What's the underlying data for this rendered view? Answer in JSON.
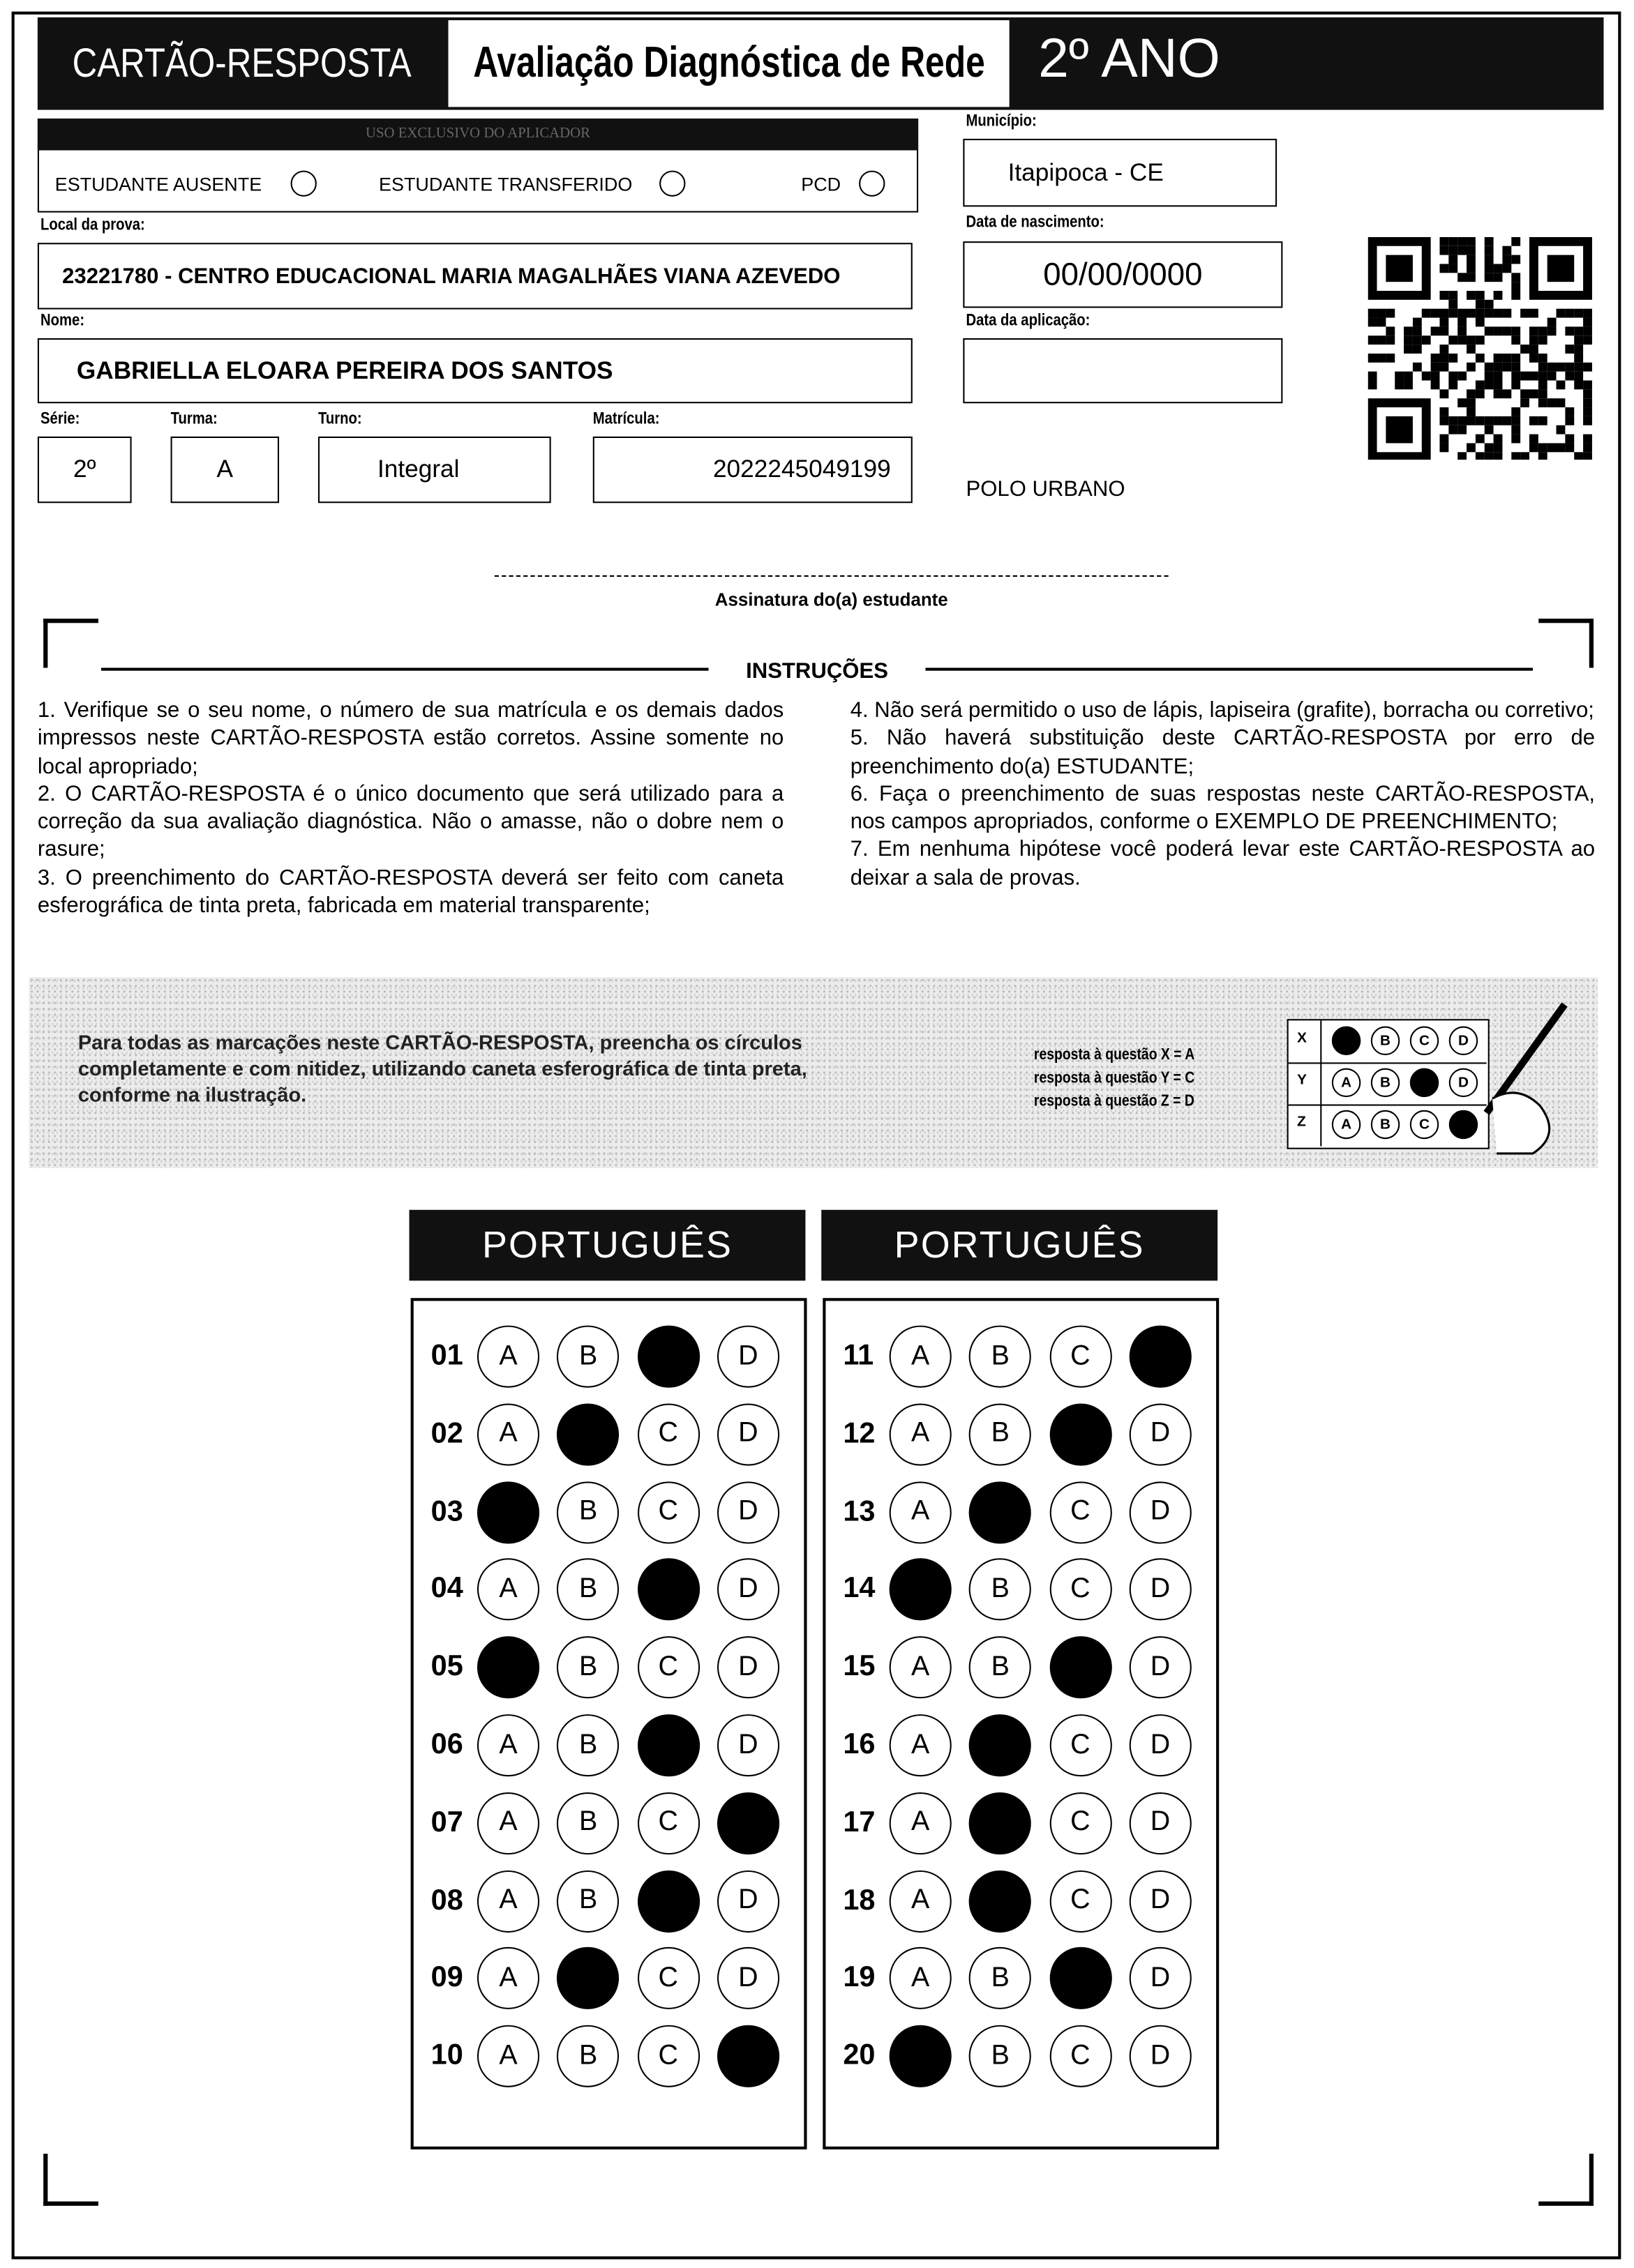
{
  "header": {
    "title": "CARTÃO-RESPOSTA",
    "exam": "Avaliação Diagnóstica de Rede",
    "grade": "2º ANO"
  },
  "applicator": {
    "title": "USO EXCLUSIVO DO APLICADOR",
    "options": [
      "ESTUDANTE AUSENTE",
      "ESTUDANTE TRANSFERIDO",
      "PCD"
    ]
  },
  "fields": {
    "local": {
      "label": "Local da prova:",
      "value": "23221780 - CENTRO EDUCACIONAL MARIA MAGALHÃES VIANA AZEVEDO"
    },
    "nome": {
      "label": "Nome:",
      "value": "GABRIELLA ELOARA PEREIRA DOS SANTOS"
    },
    "serie": {
      "label": "Série:",
      "value": "2º"
    },
    "turma": {
      "label": "Turma:",
      "value": "A"
    },
    "turno": {
      "label": "Turno:",
      "value": "Integral"
    },
    "matricula": {
      "label": "Matrícula:",
      "value": "2022245049199"
    },
    "municipio": {
      "label": "Município:",
      "value": "Itapipoca - CE"
    },
    "nascimento": {
      "label": "Data de nascimento:",
      "value": "00/00/0000"
    },
    "aplicacao": {
      "label": "Data da aplicação:"
    }
  },
  "polo": "POLO URBANO",
  "signature": "Assinatura do(a) estudante",
  "instructions": {
    "title": "INSTRUÇÕES",
    "items": [
      "1. Verifique se o seu nome, o número de sua matrícula e os demais dados impressos neste CARTÃO-RESPOSTA estão corretos. Assine somente no local apropriado;",
      "2. O CARTÃO-RESPOSTA é o único documento que será utilizado para a correção da sua avaliação diagnóstica. Não o amasse, não o dobre nem o rasure;",
      "3. O preenchimento do CARTÃO-RESPOSTA deverá ser feito com caneta esferográfica de tinta preta, fabricada em material transparente;",
      "4. Não será permitido o uso de lápis, lapiseira (grafite), borracha ou corretivo;",
      "5. Não haverá substituição deste CARTÃO-RESPOSTA por erro de preenchimento do(a) ESTUDANTE;",
      "6. Faça o preenchimento de suas respostas neste CARTÃO-RESPOSTA, nos campos apropriados, conforme o EXEMPLO DE PREENCHIMENTO;",
      "7. Em nenhuma hipótese você poderá levar este CARTÃO-RESPOSTA ao deixar a sala de provas."
    ]
  },
  "example": {
    "text": "Para todas as marcações neste CARTÃO-RESPOSTA, preencha os círculos completamente e com nitidez, utilizando caneta esferográfica de tinta preta, conforme na ilustração.",
    "legend": [
      "resposta à questão X = A",
      "resposta à questão Y = C",
      "resposta à questão Z = D"
    ],
    "rows": [
      {
        "label": "X",
        "marked": "A"
      },
      {
        "label": "Y",
        "marked": "C"
      },
      {
        "label": "Z",
        "marked": "D"
      }
    ]
  },
  "options": [
    "A",
    "B",
    "C",
    "D"
  ],
  "sections": [
    {
      "title": "PORTUGUÊS",
      "questions": [
        {
          "number": "01",
          "marked": "C"
        },
        {
          "number": "02",
          "marked": "B"
        },
        {
          "number": "03",
          "marked": "A"
        },
        {
          "number": "04",
          "marked": "C"
        },
        {
          "number": "05",
          "marked": "A"
        },
        {
          "number": "06",
          "marked": "C"
        },
        {
          "number": "07",
          "marked": "D"
        },
        {
          "number": "08",
          "marked": "C"
        },
        {
          "number": "09",
          "marked": "B"
        },
        {
          "number": "10",
          "marked": "D"
        }
      ]
    },
    {
      "title": "PORTUGUÊS",
      "questions": [
        {
          "number": "11",
          "marked": "D"
        },
        {
          "number": "12",
          "marked": "C"
        },
        {
          "number": "13",
          "marked": "B"
        },
        {
          "number": "14",
          "marked": "A"
        },
        {
          "number": "15",
          "marked": "C"
        },
        {
          "number": "16",
          "marked": "B"
        },
        {
          "number": "17",
          "marked": "B"
        },
        {
          "number": "18",
          "marked": "B"
        },
        {
          "number": "19",
          "marked": "C"
        },
        {
          "number": "20",
          "marked": "A"
        }
      ]
    }
  ]
}
